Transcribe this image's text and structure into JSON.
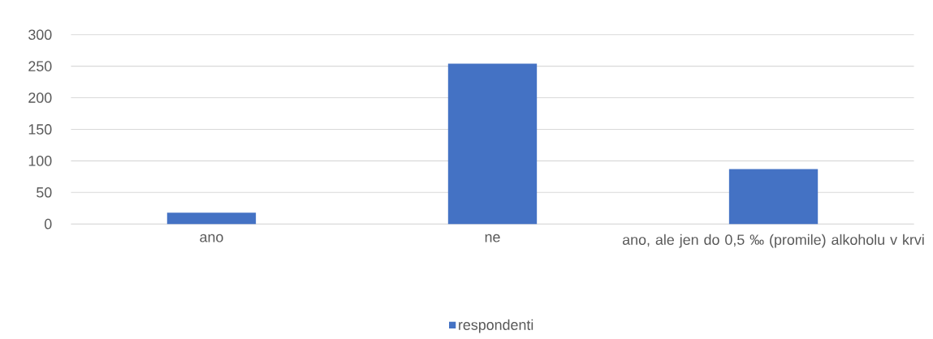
{
  "chart_data": {
    "type": "bar",
    "categories": [
      "ano",
      "ne",
      "ano, ale jen do 0,5 ‰ (promile) alkoholu v krvi"
    ],
    "series": [
      {
        "name": "respondenti",
        "color": "#4472c4",
        "values": [
          18,
          254,
          87
        ]
      }
    ],
    "ylim": [
      0,
      300
    ],
    "yticks": [
      0,
      50,
      100,
      150,
      200,
      250,
      300
    ],
    "grid": "y",
    "legend": "bottom"
  }
}
